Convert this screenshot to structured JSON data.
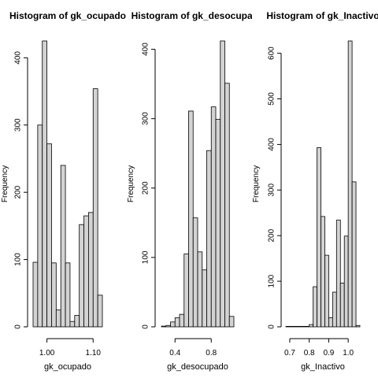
{
  "chart_data": [
    {
      "type": "histogram",
      "title": "Histogram of gk_ocupado",
      "xlabel": "gk_ocupado",
      "ylabel": "Frequency",
      "bins": [
        0.97,
        0.98,
        0.99,
        1.0,
        1.01,
        1.02,
        1.03,
        1.04,
        1.05,
        1.06,
        1.07,
        1.08,
        1.09,
        1.1,
        1.11,
        1.12
      ],
      "values": [
        96,
        300,
        425,
        272,
        95,
        25,
        240,
        95,
        8,
        17,
        152,
        165,
        170,
        354,
        47
      ],
      "color": "#d3d3d3",
      "xlim": [
        0.97,
        1.12
      ],
      "xticks": [
        {
          "value": 1,
          "label": "1.00"
        },
        {
          "value": 1.1,
          "label": "1.10"
        }
      ],
      "ylim": [
        0,
        425
      ],
      "yticks": [
        0,
        100,
        200,
        300,
        400
      ]
    },
    {
      "type": "histogram",
      "title": "Histogram of gk_desocupado",
      "xlabel": "gk_desocupado",
      "ylabel": "Frequency",
      "bins": [
        0.25,
        0.3,
        0.35,
        0.4,
        0.45,
        0.5,
        0.55,
        0.6,
        0.65,
        0.7,
        0.75,
        0.8,
        0.85,
        0.9,
        0.95,
        1.0,
        1.05
      ],
      "values": [
        1,
        2,
        7,
        13,
        18,
        105,
        311,
        157,
        108,
        82,
        254,
        317,
        299,
        412,
        351,
        15
      ],
      "color": "#d3d3d3",
      "xlim": [
        0.25,
        1.05
      ],
      "xticks": [
        0.4,
        0.8
      ],
      "ylim": [
        0,
        412
      ],
      "yticks": [
        0,
        100,
        200,
        300,
        400
      ]
    },
    {
      "type": "histogram",
      "title": "Histogram of gk_Inactivo",
      "xlabel": "gk_Inactivo",
      "ylabel": "Frequency",
      "bins": [
        0.68,
        0.7,
        0.72,
        0.74,
        0.76,
        0.78,
        0.8,
        0.82,
        0.84,
        0.86,
        0.88,
        0.9,
        0.92,
        0.94,
        0.96,
        0.98,
        1.0,
        1.02,
        1.04,
        1.06
      ],
      "values": [
        1,
        1,
        1,
        1,
        1,
        1,
        5,
        88,
        393,
        242,
        157,
        20,
        76,
        234,
        96,
        199,
        627,
        318,
        3
      ],
      "color": "#d3d3d3",
      "xlim": [
        0.68,
        1.06
      ],
      "xticks": [
        0.7,
        0.8,
        0.9,
        {
          "value": 1,
          "label": "1.0"
        }
      ],
      "ylim": [
        0,
        627
      ],
      "yticks": [
        0,
        100,
        200,
        300,
        400,
        500,
        600
      ]
    }
  ]
}
